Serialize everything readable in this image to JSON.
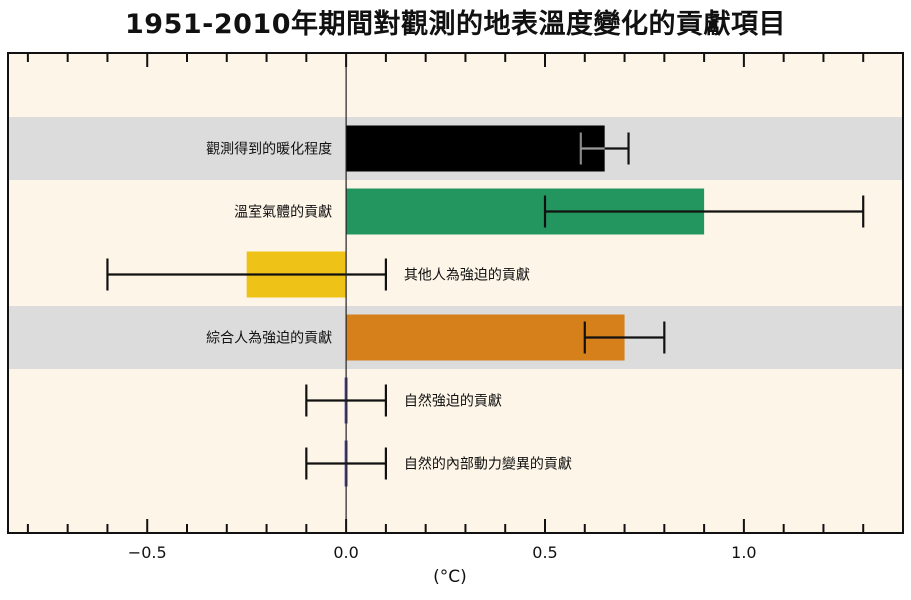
{
  "title": "1951-2010年期間對觀測的地表溫度變化的貢獻項目",
  "chart_data": {
    "type": "bar",
    "orientation": "horizontal",
    "title": "1951-2010年期間對觀測的地表溫度變化的貢獻項目",
    "xlabel": "(°C)",
    "xlim": [
      -0.85,
      1.4
    ],
    "xticks": [
      -0.5,
      0.0,
      0.5,
      1.0
    ],
    "xtick_labels": [
      "−0.5",
      "0.0",
      "0.5",
      "1.0"
    ],
    "grid": false,
    "categories": [
      "觀測得到的暖化程度",
      "溫室氣體的貢獻",
      "其他人為強迫的貢獻",
      "綜合人為強迫的貢獻",
      "自然強迫的貢獻",
      "自然的內部動力變異的貢獻"
    ],
    "values": [
      0.65,
      0.9,
      -0.25,
      0.7,
      0.0,
      0.0
    ],
    "error_low": [
      0.59,
      0.5,
      -0.6,
      0.6,
      -0.1,
      -0.1
    ],
    "error_high": [
      0.71,
      1.3,
      0.1,
      0.8,
      0.1,
      0.1
    ],
    "colors": [
      "#000000",
      "#22965e",
      "#eec216",
      "#d6801c",
      "#5a4ea8",
      "#5a4ea8"
    ],
    "label_side": [
      "left",
      "left",
      "right",
      "left",
      "right",
      "right"
    ],
    "row_shaded": [
      true,
      false,
      false,
      true,
      false,
      false
    ],
    "background_color": "#fdf5e8",
    "shade_color": "#dcdcdc"
  }
}
